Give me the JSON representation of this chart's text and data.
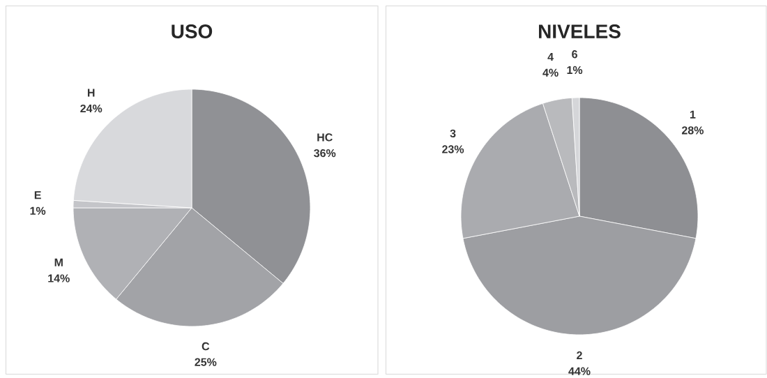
{
  "chart_data": [
    {
      "type": "pie",
      "title": "USO",
      "categories": [
        "HC",
        "C",
        "M",
        "E",
        "H"
      ],
      "values": [
        36,
        25,
        14,
        1,
        24
      ],
      "value_labels": [
        "36%",
        "25%",
        "14%",
        "1%",
        "24%"
      ],
      "colors": [
        "#909195",
        "#a2a3a7",
        "#b0b1b5",
        "#c4c5c9",
        "#d8d9dc"
      ]
    },
    {
      "type": "pie",
      "title": "NIVELES",
      "categories": [
        "1",
        "2",
        "3",
        "4",
        "6"
      ],
      "values": [
        28,
        44,
        23,
        4,
        1
      ],
      "value_labels": [
        "28%",
        "44%",
        "23%",
        "4%",
        "1%"
      ],
      "colors": [
        "#8e8f93",
        "#9d9ea2",
        "#aaabaf",
        "#b9babd",
        "#d5d6d9"
      ]
    }
  ]
}
